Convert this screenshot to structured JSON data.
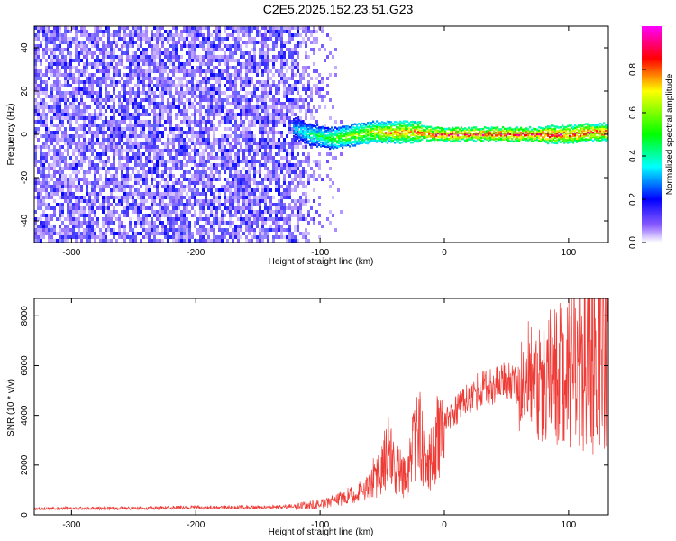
{
  "figure": {
    "title": "C2E5.2025.152.23.51.G23"
  },
  "colors": {
    "snr_line": "#ef3b36",
    "track_line": "#00aa00",
    "axis": "#000000"
  },
  "chart_data": [
    {
      "type": "heatmap",
      "title": "",
      "xlabel": "Height of straight line (km)",
      "ylabel": "Frequency (Hz)",
      "xlim": [
        -330,
        132
      ],
      "ylim": [
        -50,
        50
      ],
      "xticks": [
        "-300",
        "-200",
        "-100",
        "0",
        "100"
      ],
      "xtick_values": [
        -300,
        -200,
        -100,
        0,
        100
      ],
      "yticks": [
        "-40",
        "-20",
        "0",
        "20",
        "40"
      ],
      "ytick_values": [
        -40,
        -20,
        0,
        20,
        40
      ],
      "grid": false,
      "colorbar": {
        "label": "Normalized spectral amplitude",
        "range": [
          0,
          1
        ],
        "ticks": [
          "0.0",
          "0.2",
          "0.4",
          "0.6",
          "0.8"
        ],
        "tick_values": [
          0.0,
          0.2,
          0.4,
          0.6,
          0.8
        ],
        "colormap": [
          "#ffffff",
          "#5b00ff",
          "#0000ff",
          "#00ffff",
          "#00ff00",
          "#ffff00",
          "#ff0000",
          "#ff00ff"
        ]
      },
      "noise_region_x": [
        -330,
        -75
      ],
      "signal_track": {
        "x": [
          -122,
          -110,
          -100,
          -90,
          -80,
          -70,
          -60,
          -50,
          -40,
          -30,
          -20,
          -10,
          0,
          20,
          40,
          60,
          80,
          100,
          120,
          132
        ],
        "y": [
          3,
          0,
          -1,
          -2,
          -1,
          0,
          1,
          1,
          1,
          1,
          1,
          0,
          0,
          0,
          0,
          0,
          0,
          0,
          1,
          1
        ],
        "amplitude": [
          0.35,
          0.45,
          0.5,
          0.55,
          0.6,
          0.65,
          0.7,
          0.75,
          0.8,
          0.8,
          0.85,
          0.9,
          0.9,
          0.9,
          0.9,
          0.9,
          0.9,
          0.9,
          0.88,
          0.85
        ]
      }
    },
    {
      "type": "line",
      "title": "",
      "xlabel": "Height of straight line (km)",
      "ylabel": "SNR (10 * v/v)",
      "xlim": [
        -330,
        132
      ],
      "ylim": [
        0,
        8700
      ],
      "xticks": [
        "-300",
        "-200",
        "-100",
        "0",
        "100"
      ],
      "xtick_values": [
        -300,
        -200,
        -100,
        0,
        100
      ],
      "yticks": [
        "0",
        "2000",
        "4000",
        "6000",
        "8000"
      ],
      "ytick_values": [
        0,
        2000,
        4000,
        6000,
        8000
      ],
      "grid": false,
      "series": [
        {
          "x": [
            -330,
            -300,
            -250,
            -200,
            -150,
            -120,
            -110,
            -100,
            -90,
            -80,
            -70,
            -60,
            -50,
            -45,
            -40,
            -30,
            -25,
            -20,
            -15,
            -10,
            -5,
            0,
            10,
            20,
            30,
            40,
            50,
            60,
            70,
            80,
            90,
            100,
            110,
            120,
            125,
            132
          ],
          "y": [
            250,
            260,
            270,
            300,
            300,
            350,
            380,
            450,
            550,
            700,
            900,
            1200,
            1800,
            2400,
            2000,
            1300,
            2800,
            3400,
            2000,
            2300,
            3300,
            3700,
            4200,
            4700,
            5000,
            5200,
            5400,
            5200,
            5100,
            5300,
            5500,
            5600,
            6000,
            6600,
            7200,
            7000
          ]
        }
      ]
    }
  ]
}
